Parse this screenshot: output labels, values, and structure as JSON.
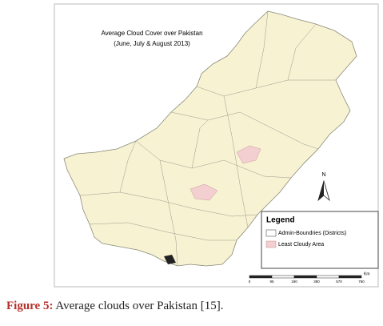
{
  "map": {
    "title_lines": [
      "Average Cloud Cover over Pakistan",
      "(June, July & August 2013)"
    ],
    "legend": {
      "title": "Legend",
      "items": [
        "Admin-Boundries (Districts)",
        "Least Cloudy Area"
      ]
    },
    "north": "N",
    "scale": {
      "labels": [
        "0",
        "95",
        "190",
        "380",
        "570",
        "760"
      ],
      "unit": "Km"
    }
  },
  "caption": {
    "label": "Figure 5:",
    "text": "Average clouds over Pakistan [15]."
  }
}
